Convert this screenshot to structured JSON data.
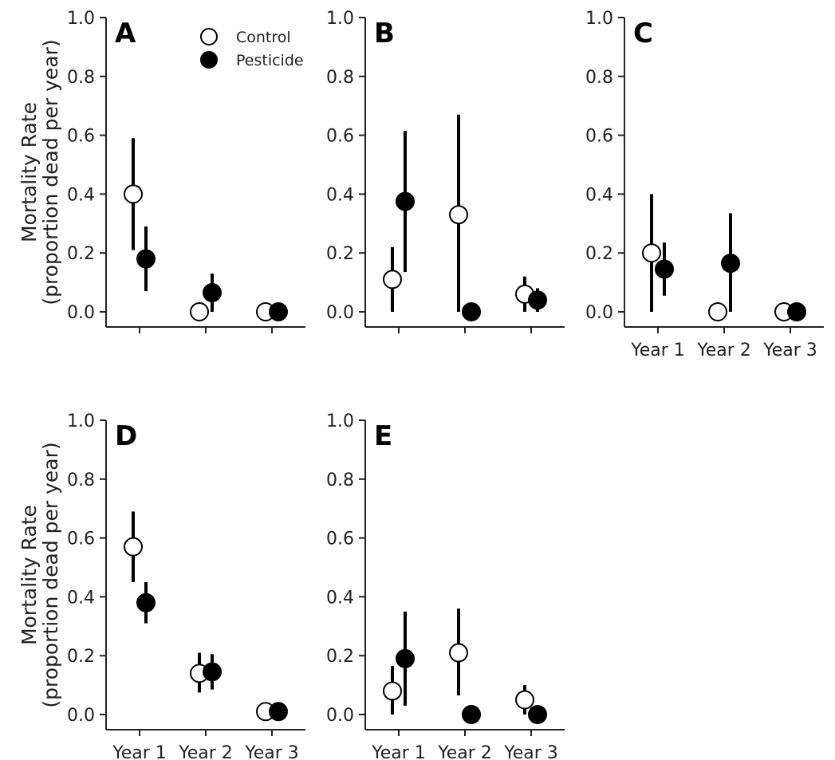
{
  "chart_data": {
    "type": "scatter",
    "ylim": [
      0,
      1.0
    ],
    "y_ticks": [
      "0.0",
      "0.2",
      "0.4",
      "0.6",
      "0.8",
      "1.0"
    ],
    "ylabel_line1": "Mortality Rate",
    "ylabel_line2": "(proportion dead per year)",
    "categories": [
      "Year 1",
      "Year 2",
      "Year 3"
    ],
    "legend": {
      "position": "top-right of panel A",
      "entries": [
        "Control",
        "Pesticide"
      ]
    },
    "series_styles": {
      "Control": "#ffffff",
      "Pesticide": "#000000"
    },
    "panels": [
      {
        "label": "A",
        "show_ylabel": true,
        "show_xticklabels": false,
        "series": [
          {
            "name": "Control",
            "values": [
              0.4,
              0.0,
              0.0
            ],
            "lower": [
              0.21,
              null,
              null
            ],
            "upper": [
              0.59,
              null,
              null
            ]
          },
          {
            "name": "Pesticide",
            "values": [
              0.18,
              0.065,
              0.0
            ],
            "lower": [
              0.07,
              0.0,
              null
            ],
            "upper": [
              0.29,
              0.13,
              null
            ]
          }
        ]
      },
      {
        "label": "B",
        "show_ylabel": false,
        "show_xticklabels": false,
        "series": [
          {
            "name": "Control",
            "values": [
              0.11,
              0.33,
              0.06
            ],
            "lower": [
              0.0,
              0.0,
              0.0
            ],
            "upper": [
              0.22,
              0.67,
              0.12
            ]
          },
          {
            "name": "Pesticide",
            "values": [
              0.375,
              0.0,
              0.04
            ],
            "lower": [
              0.135,
              null,
              0.0
            ],
            "upper": [
              0.615,
              null,
              0.08
            ]
          }
        ]
      },
      {
        "label": "C",
        "show_ylabel": false,
        "show_xticklabels": true,
        "series": [
          {
            "name": "Control",
            "values": [
              0.2,
              0.0,
              0.0
            ],
            "lower": [
              0.0,
              null,
              null
            ],
            "upper": [
              0.4,
              null,
              null
            ]
          },
          {
            "name": "Pesticide",
            "values": [
              0.145,
              0.165,
              0.0
            ],
            "lower": [
              0.055,
              0.0,
              null
            ],
            "upper": [
              0.235,
              0.335,
              null
            ]
          }
        ]
      },
      {
        "label": "D",
        "show_ylabel": true,
        "show_xticklabels": true,
        "series": [
          {
            "name": "Control",
            "values": [
              0.57,
              0.14,
              0.01
            ],
            "lower": [
              0.45,
              0.075,
              null
            ],
            "upper": [
              0.69,
              0.21,
              null
            ]
          },
          {
            "name": "Pesticide",
            "values": [
              0.38,
              0.145,
              0.01
            ],
            "lower": [
              0.31,
              0.085,
              null
            ],
            "upper": [
              0.45,
              0.205,
              null
            ]
          }
        ]
      },
      {
        "label": "E",
        "show_ylabel": false,
        "show_xticklabels": true,
        "series": [
          {
            "name": "Control",
            "values": [
              0.08,
              0.21,
              0.05
            ],
            "lower": [
              0.0,
              0.065,
              0.0
            ],
            "upper": [
              0.165,
              0.36,
              0.1
            ]
          },
          {
            "name": "Pesticide",
            "values": [
              0.19,
              0.0,
              0.0
            ],
            "lower": [
              0.03,
              null,
              null
            ],
            "upper": [
              0.35,
              null,
              null
            ]
          }
        ]
      }
    ]
  }
}
